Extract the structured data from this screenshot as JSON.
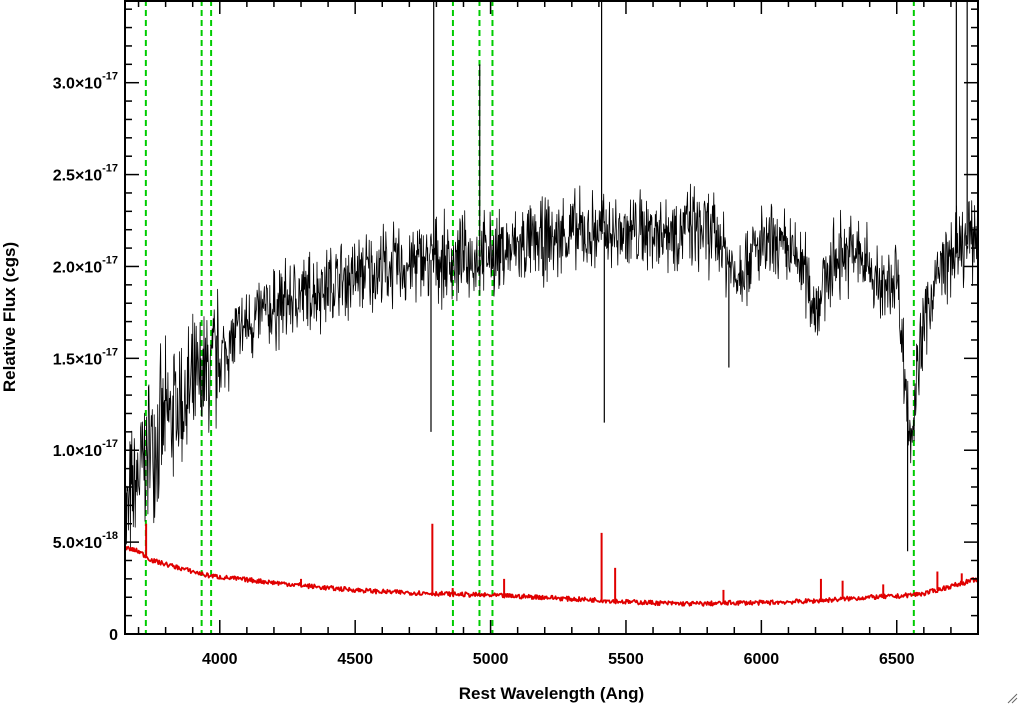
{
  "chart_data": {
    "type": "line",
    "title": "",
    "xlabel": "Rest Wavelength (Ang)",
    "ylabel": "Relative Flux (cgs)",
    "xlim": [
      3650,
      6800
    ],
    "ylim": [
      0,
      3.45e-17
    ],
    "x_ticks": [
      {
        "value": 4000,
        "label": "4000"
      },
      {
        "value": 4500,
        "label": "4500"
      },
      {
        "value": 5000,
        "label": "5000"
      },
      {
        "value": 5500,
        "label": "5500"
      },
      {
        "value": 6000,
        "label": "6000"
      },
      {
        "value": 6500,
        "label": "6500"
      }
    ],
    "y_ticks": [
      {
        "value": 0,
        "mantissa": "0",
        "exponent": ""
      },
      {
        "value": 5e-18,
        "mantissa": "5.0×10",
        "exponent": "-18"
      },
      {
        "value": 1e-17,
        "mantissa": "1.0×10",
        "exponent": "-17"
      },
      {
        "value": 1.5e-17,
        "mantissa": "1.5×10",
        "exponent": "-17"
      },
      {
        "value": 2e-17,
        "mantissa": "2.0×10",
        "exponent": "-17"
      },
      {
        "value": 2.5e-17,
        "mantissa": "2.5×10",
        "exponent": "-17"
      },
      {
        "value": 3e-17,
        "mantissa": "3.0×10",
        "exponent": "-17"
      }
    ],
    "grid": false,
    "legend": "none",
    "series": [
      {
        "color": "#000000",
        "x": [
          3650,
          3700,
          3750,
          3800,
          3850,
          3900,
          3950,
          4000,
          4050,
          4100,
          4150,
          4200,
          4250,
          4300,
          4350,
          4400,
          4450,
          4500,
          4550,
          4600,
          4650,
          4700,
          4750,
          4800,
          4850,
          4900,
          4950,
          5000,
          5050,
          5100,
          5150,
          5200,
          5250,
          5300,
          5350,
          5400,
          5450,
          5500,
          5550,
          5600,
          5650,
          5700,
          5750,
          5800,
          5850,
          5900,
          5950,
          6000,
          6050,
          6100,
          6150,
          6200,
          6250,
          6300,
          6350,
          6400,
          6450,
          6500,
          6550,
          6600,
          6650,
          6700,
          6750,
          6800
        ],
        "y": [
          6e-18,
          8.5e-18,
          1.05e-17,
          1.15e-17,
          1.25e-17,
          1.3e-17,
          1.4e-17,
          1.5e-17,
          1.6e-17,
          1.68e-17,
          1.73e-17,
          1.77e-17,
          1.81e-17,
          1.84e-17,
          1.87e-17,
          1.9e-17,
          1.92e-17,
          1.95e-17,
          1.97e-17,
          1.99e-17,
          2e-17,
          2.01e-17,
          2.03e-17,
          2.04e-17,
          2.03e-17,
          2.04e-17,
          2.05e-17,
          2.06e-17,
          2.08e-17,
          2.1e-17,
          2.12e-17,
          2.14e-17,
          2.16e-17,
          2.18e-17,
          2.18e-17,
          2.19e-17,
          2.18e-17,
          2.18e-17,
          2.19e-17,
          2.2e-17,
          2.2e-17,
          2.21e-17,
          2.21e-17,
          2.19e-17,
          2.15e-17,
          1.95e-17,
          2.05e-17,
          2.1e-17,
          2.1e-17,
          2.07e-17,
          2.02e-17,
          1.78e-17,
          1.98e-17,
          2.08e-17,
          2.06e-17,
          2e-17,
          1.85e-17,
          1.98e-17,
          1.05e-17,
          1.7e-17,
          1.95e-17,
          2.05e-17,
          2.1e-17,
          2.2e-17
        ],
        "spikes": [
          [
            4780,
            1.1e-17
          ],
          [
            4790,
            3.45e-17
          ],
          [
            4960,
            3.1e-17
          ],
          [
            5410,
            3.45e-17
          ],
          [
            5420,
            1.15e-17
          ],
          [
            5880,
            1.45e-17
          ],
          [
            6540,
            4.5e-18
          ],
          [
            6720,
            3.45e-17
          ],
          [
            6760,
            3.45e-17
          ]
        ]
      },
      {
        "color": "#e00000",
        "x": [
          3650,
          3700,
          3750,
          3800,
          3850,
          3900,
          3950,
          4000,
          4100,
          4200,
          4300,
          4400,
          4500,
          4600,
          4700,
          4800,
          4900,
          5000,
          5100,
          5200,
          5300,
          5400,
          5500,
          5600,
          5700,
          5800,
          5900,
          6000,
          6100,
          6200,
          6300,
          6400,
          6500,
          6600,
          6700,
          6800
        ],
        "y": [
          4.7e-18,
          4.5e-18,
          4e-18,
          3.8e-18,
          3.6e-18,
          3.4e-18,
          3.2e-18,
          3.1e-18,
          2.95e-18,
          2.8e-18,
          2.65e-18,
          2.5e-18,
          2.4e-18,
          2.3e-18,
          2.25e-18,
          2.2e-18,
          2.15e-18,
          2.1e-18,
          2.05e-18,
          2e-18,
          1.9e-18,
          1.85e-18,
          1.75e-18,
          1.7e-18,
          1.65e-18,
          1.65e-18,
          1.7e-18,
          1.7e-18,
          1.75e-18,
          1.8e-18,
          1.9e-18,
          2e-18,
          2.05e-18,
          2.2e-18,
          2.6e-18,
          3e-18
        ],
        "spikes": [
          [
            3728,
            6e-18
          ],
          [
            4300,
            3e-18
          ],
          [
            4785,
            6e-18
          ],
          [
            4860,
            2.5e-18
          ],
          [
            5050,
            3e-18
          ],
          [
            5410,
            5.5e-18
          ],
          [
            5460,
            3.6e-18
          ],
          [
            5860,
            2.4e-18
          ],
          [
            6220,
            3e-18
          ],
          [
            6300,
            2.9e-18
          ],
          [
            6450,
            2.7e-18
          ],
          [
            6650,
            3.4e-18
          ],
          [
            6740,
            3.3e-18
          ]
        ]
      }
    ],
    "reference_lines": [
      {
        "x": 3727,
        "style": "dashed",
        "color": "#00cc00"
      },
      {
        "x": 3933,
        "style": "dashed",
        "color": "#00cc00"
      },
      {
        "x": 3968,
        "style": "dashed",
        "color": "#00cc00"
      },
      {
        "x": 4861,
        "style": "dashed",
        "color": "#00cc00"
      },
      {
        "x": 4959,
        "style": "dashed",
        "color": "#00cc00"
      },
      {
        "x": 5007,
        "style": "dashed",
        "color": "#00cc00"
      },
      {
        "x": 6563,
        "style": "dashed",
        "color": "#00cc00"
      }
    ]
  }
}
